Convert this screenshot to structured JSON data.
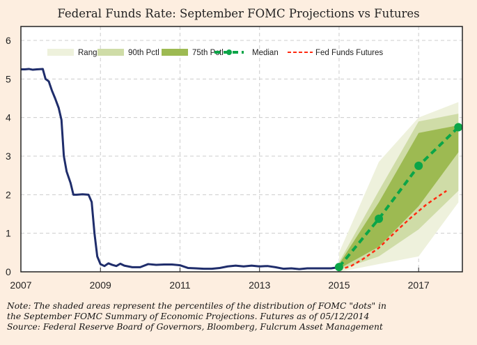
{
  "chart_data": {
    "type": "line",
    "title": "Federal Funds Rate: September FOMC Projections vs Futures",
    "xlabel": "",
    "ylabel": "",
    "xlim": [
      2007,
      2018.1
    ],
    "ylim": [
      0,
      6
    ],
    "x_ticks": [
      "2007",
      "2009",
      "2011",
      "2013",
      "2015",
      "2017"
    ],
    "x_tick_values": [
      2007,
      2009,
      2011,
      2013,
      2015,
      2017
    ],
    "y_ticks": [
      "0",
      "1",
      "2",
      "3",
      "4",
      "5",
      "6"
    ],
    "grid": true,
    "legend": {
      "placement": "top",
      "entries": [
        "Range",
        "90th Pctl",
        "75th Pctl",
        "Median",
        "Fed Funds Futures"
      ]
    },
    "colors": {
      "fed_funds": "#1f2d6b",
      "range": "#eef1dc",
      "p90": "#cfdca7",
      "p75": "#9dba52",
      "median": "#0ba548",
      "futures": "#ff2a10"
    },
    "series": [
      {
        "name": "Fed Funds Rate",
        "x": [
          2007,
          2007.1,
          2007.2,
          2007.3,
          2007.4,
          2007.55,
          2007.62,
          2007.7,
          2007.78,
          2007.86,
          2007.95,
          2008.02,
          2008.08,
          2008.15,
          2008.25,
          2008.32,
          2008.4,
          2008.55,
          2008.7,
          2008.78,
          2008.85,
          2008.92,
          2009.0,
          2009.1,
          2009.2,
          2009.3,
          2009.4,
          2009.5,
          2009.6,
          2009.8,
          2010.0,
          2010.2,
          2010.4,
          2010.6,
          2010.8,
          2011.0,
          2011.2,
          2011.4,
          2011.6,
          2011.8,
          2012.0,
          2012.2,
          2012.4,
          2012.6,
          2012.8,
          2013.0,
          2013.2,
          2013.4,
          2013.6,
          2013.8,
          2014.0,
          2014.2,
          2014.4,
          2014.6,
          2014.8,
          2015.0
        ],
        "values": [
          5.25,
          5.25,
          5.26,
          5.24,
          5.25,
          5.26,
          5.0,
          4.94,
          4.7,
          4.5,
          4.25,
          3.94,
          3.0,
          2.6,
          2.3,
          2.0,
          2.0,
          2.01,
          2.0,
          1.81,
          1.0,
          0.4,
          0.2,
          0.15,
          0.22,
          0.18,
          0.15,
          0.21,
          0.16,
          0.12,
          0.12,
          0.2,
          0.18,
          0.19,
          0.19,
          0.17,
          0.1,
          0.09,
          0.08,
          0.08,
          0.1,
          0.14,
          0.16,
          0.14,
          0.16,
          0.14,
          0.15,
          0.12,
          0.08,
          0.09,
          0.07,
          0.09,
          0.09,
          0.09,
          0.09,
          0.12
        ]
      },
      {
        "name": "Median",
        "x": [
          2015,
          2016,
          2017,
          2018
        ],
        "values": [
          0.125,
          1.375,
          2.75,
          3.75
        ]
      },
      {
        "name": "Fed Funds Futures",
        "x": [
          2015,
          2015.3,
          2015.6,
          2016,
          2016.4,
          2016.8,
          2017.2,
          2017.7
        ],
        "values": [
          0.05,
          0.15,
          0.33,
          0.62,
          1.02,
          1.4,
          1.75,
          2.1
        ]
      },
      {
        "name": "Range",
        "x": [
          2015,
          2016,
          2017,
          2018
        ],
        "low": [
          0.0,
          0.2,
          0.4,
          1.8
        ],
        "high": [
          0.5,
          2.85,
          4.0,
          4.4
        ]
      },
      {
        "name": "90th Pctl",
        "x": [
          2015,
          2016,
          2017,
          2018
        ],
        "low": [
          0.05,
          0.4,
          1.1,
          2.1
        ],
        "high": [
          0.25,
          2.1,
          3.9,
          4.1
        ]
      },
      {
        "name": "75th Pctl",
        "x": [
          2015,
          2016,
          2017,
          2018
        ],
        "low": [
          0.08,
          0.65,
          1.7,
          3.1
        ],
        "high": [
          0.2,
          1.8,
          3.6,
          3.8
        ]
      }
    ]
  },
  "notes": [
    "Note: The shaded areas represent the percentiles of the distribution of FOMC \"dots\" in",
    "the September FOMC Summary of Economic Projections.  Futures as of 05/12/2014",
    "Source: Federal Reserve Board of Governors, Bloomberg, Fulcrum Asset Management"
  ]
}
